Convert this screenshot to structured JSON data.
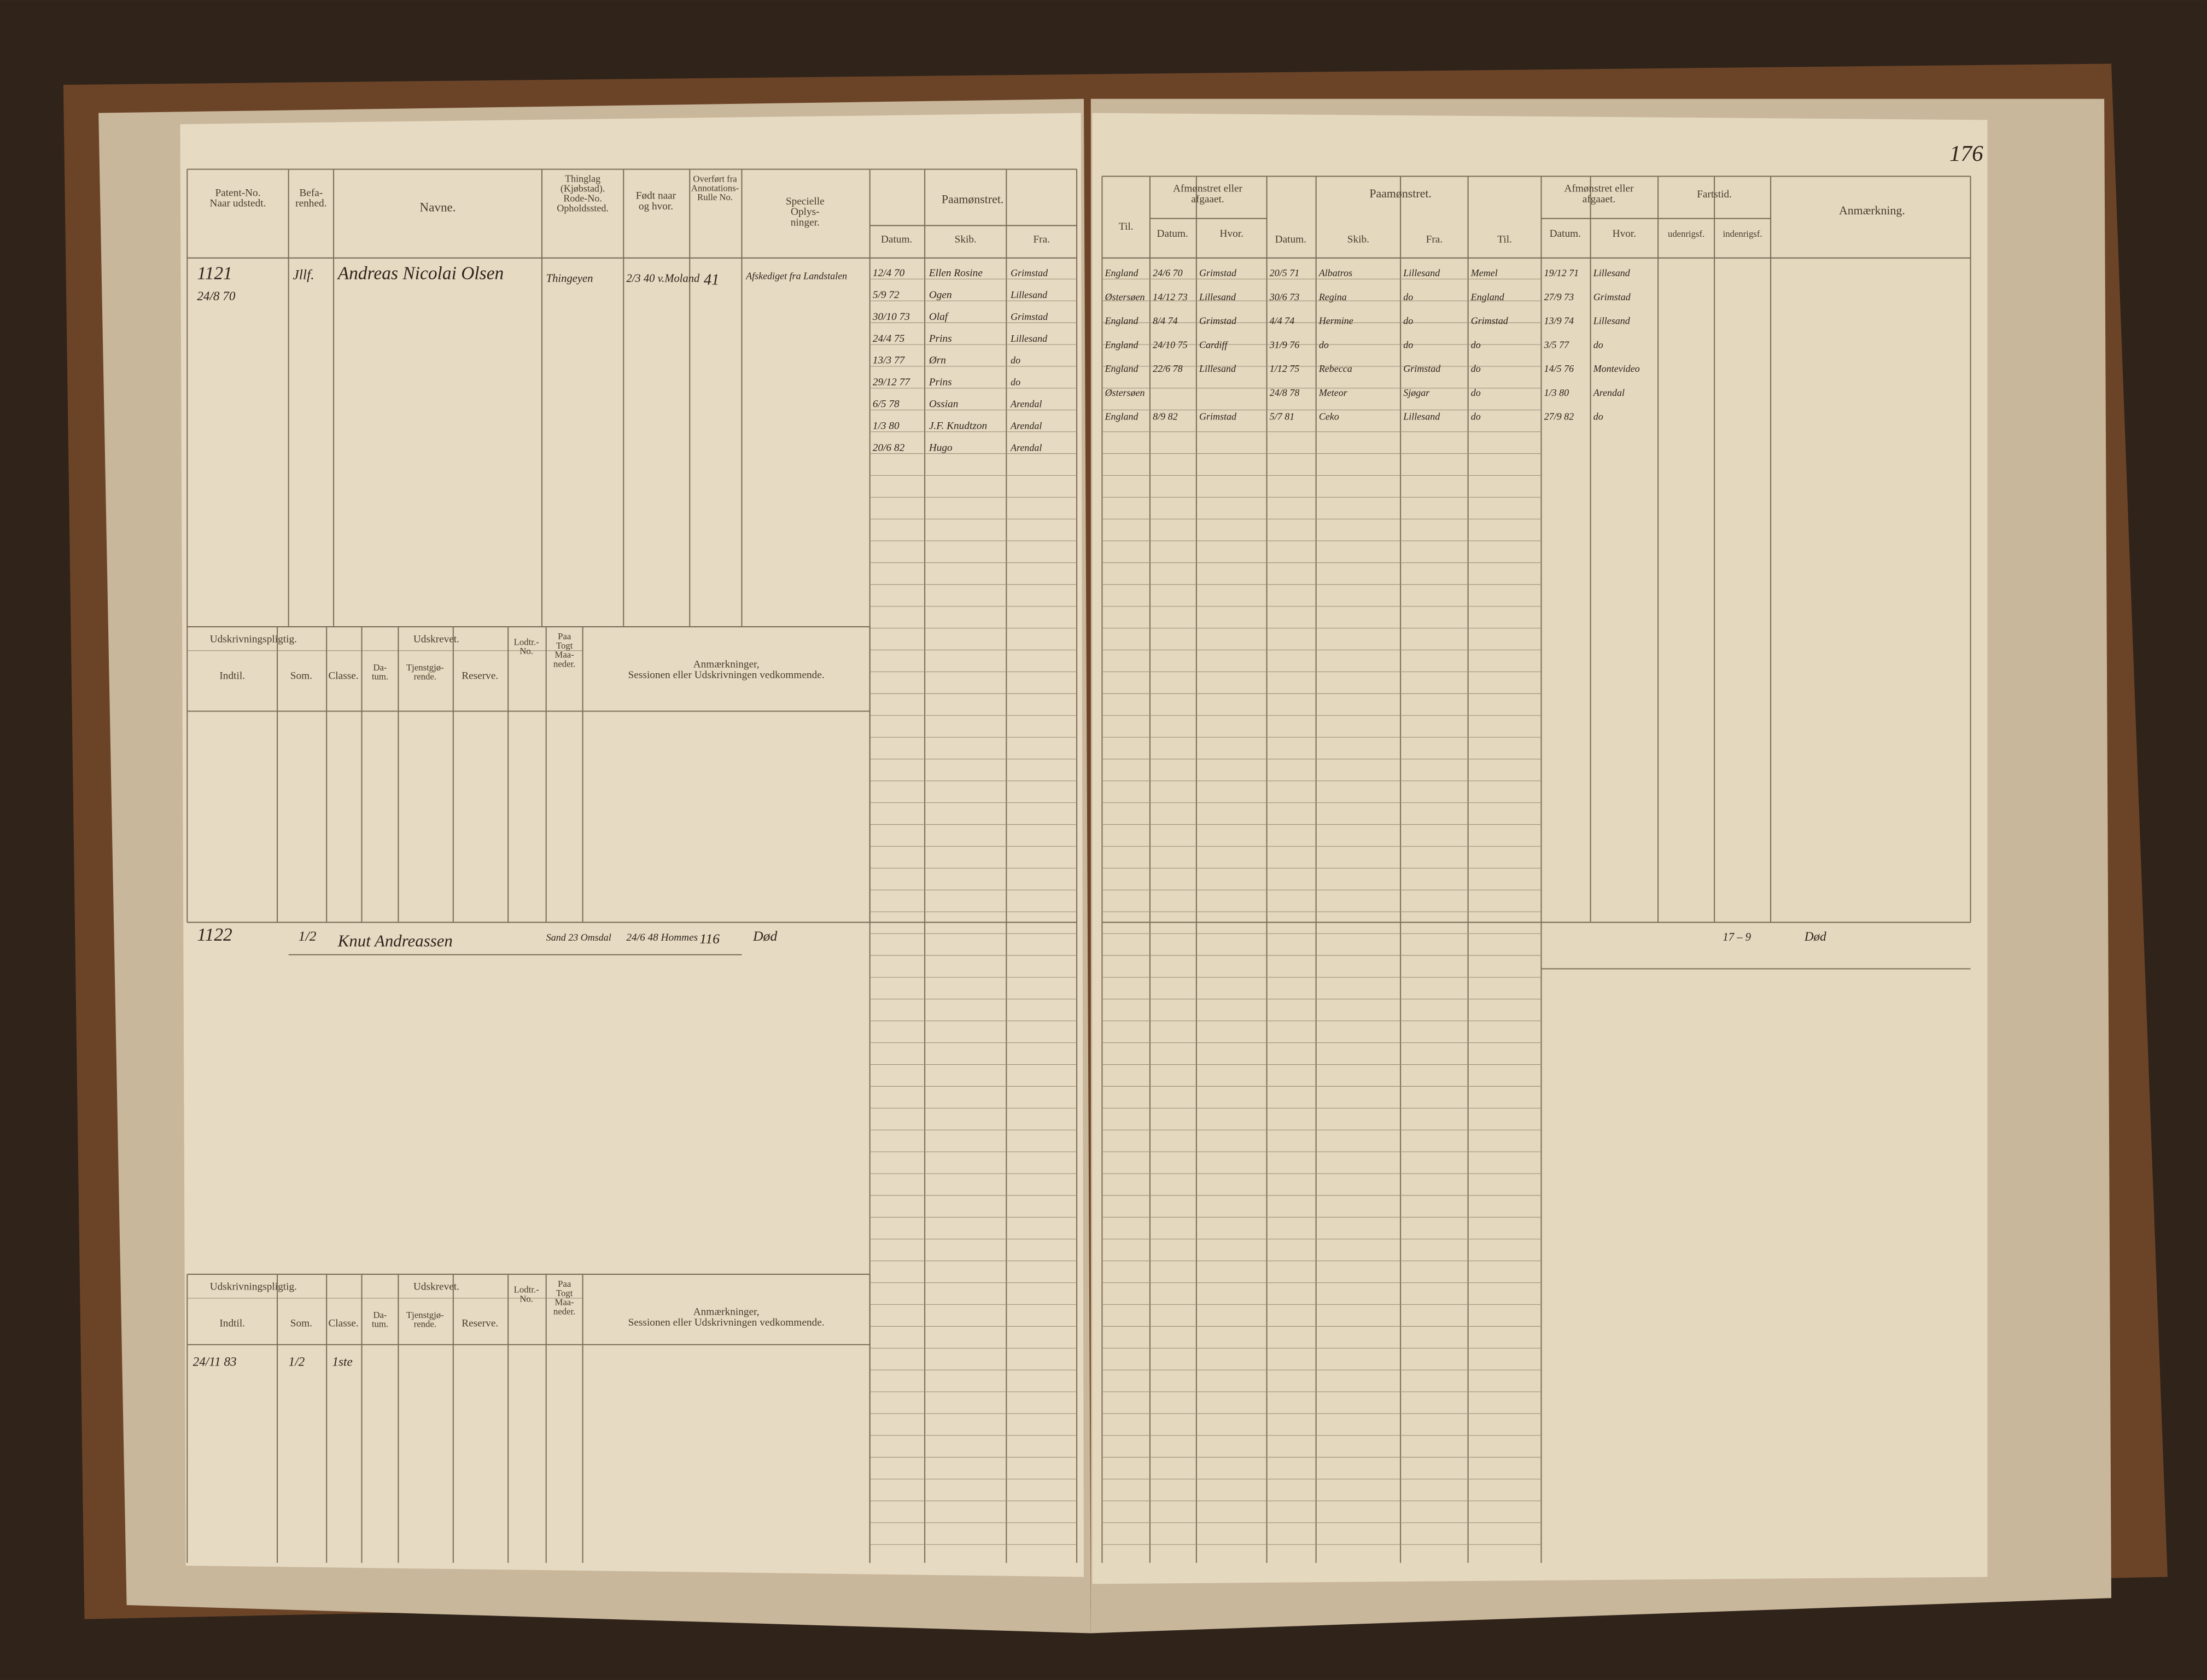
{
  "page_number": "176",
  "left_page": {
    "columns": {
      "patent_no": [
        "Patent-No.",
        "Naar udstedt."
      ],
      "befarenhed": [
        "Befa-",
        "renhed."
      ],
      "navne": "Navne.",
      "thinglag": [
        "Thinglag",
        "(Kjøbstad).",
        "Rode-No.",
        "Opholdssted."
      ],
      "fodt": [
        "Født naar",
        "og hvor."
      ],
      "overfort": [
        "Overført fra",
        "Annotations-",
        "Rulle No."
      ],
      "specielle": [
        "Specielle",
        "Oplys-",
        "ninger."
      ],
      "paamonstret": "Paamønstret.",
      "datum": "Datum.",
      "skib": "Skib.",
      "fra": "Fra."
    },
    "lower_columns": {
      "udskrivningspligtig": "Udskrivningspligtig.",
      "udskrevet": "Udskrevet.",
      "indtil": "Indtil.",
      "som": "Som.",
      "classe": "Classe.",
      "datum": [
        "Da-",
        "tum."
      ],
      "tjenstgjorende": [
        "Tjenstgjø-",
        "rende."
      ],
      "reserve": "Reserve.",
      "lodtr": [
        "Lodtr.-",
        "No."
      ],
      "paa_togt": [
        "Paa",
        "Togt",
        "Maa-",
        "neder."
      ],
      "anmaerkninger": [
        "Anmærkninger,",
        "Sessionen eller Udskrivningen vedkommende."
      ]
    },
    "entries": [
      {
        "patent_no": "1121",
        "date": "24/8 70",
        "befarenhed": "Jllf.",
        "name": "Andreas Nicolai Olsen",
        "thinglag": "Thingeyen",
        "fodt": "2/3 40 v.Moland",
        "overfort": "41",
        "specielle": "Afskediget fra Landstalen",
        "voyages": [
          [
            "12/4 70",
            "Ellen Rosine",
            "Grimstad"
          ],
          [
            "5/9 72",
            "Ogen",
            "Lillesand"
          ],
          [
            "30/10 73",
            "Olaf",
            "Grimstad"
          ],
          [
            "24/4 75",
            "Prins",
            "Lillesand"
          ],
          [
            "13/3 77",
            "Ørn",
            "do"
          ],
          [
            "29/12 77",
            "Prins",
            "do"
          ],
          [
            "6/5 78",
            "Ossian",
            "Arendal"
          ],
          [
            "1/3 80",
            "J.F. Knudtzon",
            "Arendal"
          ],
          [
            "20/6 82",
            "Hugo",
            "Arendal"
          ]
        ]
      },
      {
        "patent_no": "1122",
        "befarenhed": "1/2",
        "name": "Knut Andreassen",
        "thinglag": "Sand 23 Omsdal",
        "fodt": "24/6 48 Hommes",
        "overfort": "116",
        "specielle": "Død",
        "lower": {
          "indtil": "24/11 83",
          "som": "1/2",
          "classe": "1ste"
        }
      }
    ]
  },
  "right_page": {
    "columns": {
      "til": "Til.",
      "afmonstret": [
        "Afmønstret eller",
        "afgaaet."
      ],
      "datum": "Datum.",
      "hvor": "Hvor.",
      "paamonstret": "Paamønstret.",
      "datum2": "Datum.",
      "skib": "Skib.",
      "fra": "Fra.",
      "til2": "Til.",
      "afmonstret2": [
        "Afmønstret eller",
        "afgaaet."
      ],
      "datum3": "Datum.",
      "hvor2": "Hvor.",
      "fartstid": "Fartstid.",
      "udenrigsf": "udenrigsf.",
      "indenrigsf": "indenrigsf.",
      "anmaerkning": "Anmærkning."
    },
    "entries": [
      {
        "rows": [
          {
            "til": "England",
            "datum": "24/6 70",
            "hvor": "Grimstad",
            "datum2": "20/5 71",
            "skib": "Albatros",
            "fra": "Lillesand",
            "til2": "Memel",
            "datum3": "19/12 71",
            "hvor2": "Lillesand"
          },
          {
            "til": "Østersøen",
            "datum": "14/12 73",
            "hvor": "Lillesand",
            "datum2": "30/6 73",
            "skib": "Regina",
            "fra": "do",
            "til2": "England",
            "datum3": "27/9 73",
            "hvor2": "Grimstad"
          },
          {
            "til": "England",
            "datum": "8/4 74",
            "hvor": "Grimstad",
            "datum2": "4/4 74",
            "skib": "Hermine",
            "fra": "do",
            "til2": "Grimstad",
            "datum3": "13/9 74",
            "hvor2": "Lillesand"
          },
          {
            "til": "England",
            "datum": "24/10 75",
            "hvor": "Cardiff",
            "datum2": "31/9 76",
            "skib": "do",
            "fra": "do",
            "til2": "do",
            "datum3": "3/5 77",
            "hvor2": "do"
          },
          {
            "til": "England",
            "datum": "22/6 78",
            "hvor": "Lillesand",
            "datum2": "1/12 75",
            "skib": "Rebecca",
            "fra": "Grimstad",
            "til2": "do",
            "datum3": "14/5 76",
            "hvor2": "Montevideo"
          },
          {
            "til": "Østersøen",
            "datum2": "24/8 78",
            "skib": "Meteor",
            "fra": "Sjøgar",
            "til2": "do",
            "datum3": "1/3 80",
            "hvor2": "Arendal"
          },
          {
            "til": "England",
            "datum": "8/9 82",
            "hvor": "Grimstad",
            "datum2": "5/7 81",
            "skib": "Ceko",
            "fra": "Lillesand",
            "til2": "do",
            "datum3": "27/9 82",
            "hvor2": "do"
          }
        ]
      },
      {
        "fartstid": "17 – 9",
        "anmaerkning": "Død"
      }
    ]
  }
}
